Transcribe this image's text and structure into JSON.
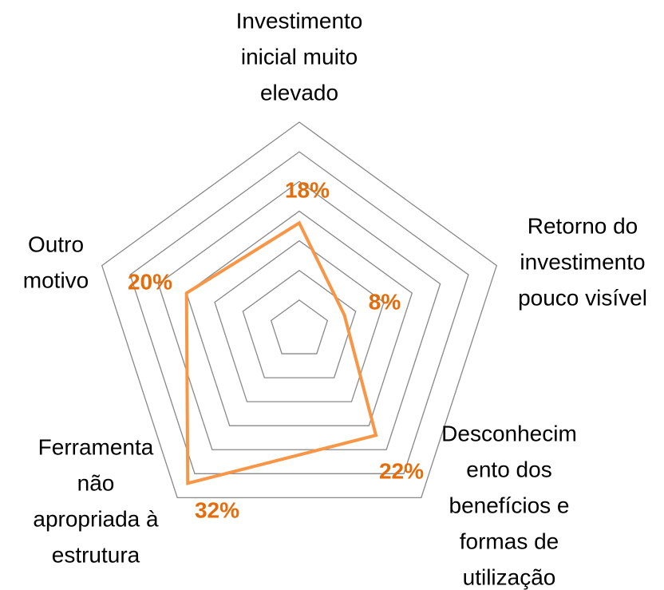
{
  "chart_data": {
    "type": "radar",
    "categories": [
      [
        "Investimento",
        "inicial muito",
        "elevado"
      ],
      [
        "Retorno do",
        "investimento",
        "pouco visível"
      ],
      [
        "Desconhecim",
        "ento dos",
        "benefícios e",
        "formas de",
        "utilização"
      ],
      [
        "Ferramenta",
        "não",
        "apropriada à",
        "estrutura"
      ],
      [
        "Outro",
        "motivo"
      ]
    ],
    "values": [
      18,
      8,
      22,
      32,
      20
    ],
    "value_labels": [
      "18%",
      "8%",
      "22%",
      "32%",
      "20%"
    ],
    "color": "#f79646",
    "ylim": [
      0,
      35
    ],
    "yticks": [
      0,
      5,
      10,
      15,
      20,
      25,
      30,
      35
    ],
    "grid": true
  }
}
